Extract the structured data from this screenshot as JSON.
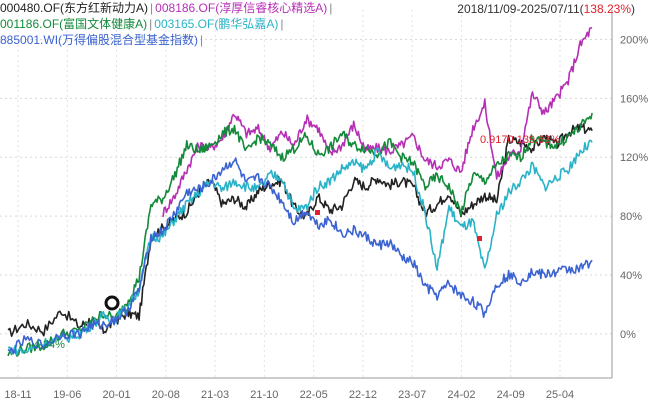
{
  "legend": {
    "rows": [
      [
        {
          "code": "000480.OF(东方红新动力A)",
          "color": "#222222"
        },
        {
          "code": "008186.OF(淳厚信睿核心精选A)",
          "color": "#b52fb5"
        }
      ],
      [
        {
          "code": "001186.OF(富国文体健康A)",
          "color": "#138a3a"
        },
        {
          "code": "003165.OF(鹏华弘嘉A)",
          "color": "#2ab3c8"
        }
      ],
      [
        {
          "code": "885001.WI(万得偏股混合型基金指数)",
          "color": "#3b63d1"
        }
      ]
    ],
    "separator": "|"
  },
  "range": {
    "dates": "2018/11/09-2025/07/11",
    "pct_open": "(",
    "pct": "138.23%",
    "pct_close": ")"
  },
  "annotations": {
    "high": "0.9170  139.63%",
    "low": "-4.34%"
  },
  "chart_data": {
    "type": "line",
    "x_ticks": [
      "18-11",
      "19-06",
      "20-01",
      "20-08",
      "21-03",
      "21-10",
      "22-05",
      "22-12",
      "23-07",
      "24-02",
      "24-09",
      "25-04"
    ],
    "y_ticks": [
      "0%",
      "40%",
      "80%",
      "120%",
      "160%",
      "200%"
    ],
    "ylim": [
      -30,
      220
    ],
    "x_range": [
      "2018-11",
      "2025-07"
    ],
    "grid": true,
    "series": [
      {
        "name": "000480.OF(东方红新动力A)",
        "color": "#222222",
        "values": [
          [
            0,
            0
          ],
          [
            3,
            7
          ],
          [
            6,
            2
          ],
          [
            9,
            16
          ],
          [
            12,
            5
          ],
          [
            14,
            10
          ],
          [
            16,
            2
          ],
          [
            18,
            9
          ],
          [
            20,
            14
          ],
          [
            22,
            12
          ],
          [
            24,
            66
          ],
          [
            26,
            72
          ],
          [
            28,
            78
          ],
          [
            30,
            83
          ],
          [
            32,
            96
          ],
          [
            34,
            104
          ],
          [
            36,
            88
          ],
          [
            38,
            92
          ],
          [
            40,
            86
          ],
          [
            42,
            97
          ],
          [
            44,
            102
          ],
          [
            46,
            104
          ],
          [
            48,
            86
          ],
          [
            50,
            79
          ],
          [
            52,
            93
          ],
          [
            54,
            84
          ],
          [
            56,
            87
          ],
          [
            58,
            104
          ],
          [
            60,
            100
          ],
          [
            62,
            106
          ],
          [
            64,
            101
          ],
          [
            66,
            104
          ],
          [
            68,
            100
          ],
          [
            70,
            82
          ],
          [
            72,
            88
          ],
          [
            74,
            96
          ],
          [
            76,
            81
          ],
          [
            78,
            88
          ],
          [
            80,
            94
          ],
          [
            82,
            90
          ],
          [
            84,
            132
          ],
          [
            86,
            130
          ],
          [
            88,
            126
          ],
          [
            90,
            134
          ],
          [
            92,
            128
          ],
          [
            94,
            137
          ],
          [
            96,
            140
          ],
          [
            98,
            138
          ]
        ]
      },
      {
        "name": "008186.OF(淳厚信睿核心精选A)",
        "color": "#b52fb5",
        "values": [
          [
            26,
            82
          ],
          [
            28,
            94
          ],
          [
            30,
            112
          ],
          [
            32,
            128
          ],
          [
            34,
            126
          ],
          [
            36,
            133
          ],
          [
            38,
            150
          ],
          [
            40,
            136
          ],
          [
            42,
            139
          ],
          [
            44,
            126
          ],
          [
            46,
            137
          ],
          [
            48,
            128
          ],
          [
            50,
            146
          ],
          [
            52,
            140
          ],
          [
            54,
            122
          ],
          [
            56,
            128
          ],
          [
            58,
            142
          ],
          [
            60,
            125
          ],
          [
            62,
            126
          ],
          [
            64,
            124
          ],
          [
            66,
            128
          ],
          [
            68,
            134
          ],
          [
            70,
            118
          ],
          [
            72,
            114
          ],
          [
            74,
            118
          ],
          [
            76,
            110
          ],
          [
            78,
            140
          ],
          [
            80,
            156
          ],
          [
            82,
            106
          ],
          [
            84,
            120
          ],
          [
            86,
            126
          ],
          [
            88,
            163
          ],
          [
            90,
            150
          ],
          [
            92,
            160
          ],
          [
            94,
            172
          ],
          [
            96,
            196
          ],
          [
            98,
            208
          ]
        ]
      },
      {
        "name": "001186.OF(富国文体健康A)",
        "color": "#138a3a",
        "values": [
          [
            0,
            -14
          ],
          [
            3,
            -10
          ],
          [
            6,
            -8
          ],
          [
            9,
            0
          ],
          [
            12,
            2
          ],
          [
            14,
            8
          ],
          [
            16,
            14
          ],
          [
            18,
            10
          ],
          [
            20,
            22
          ],
          [
            22,
            38
          ],
          [
            24,
            88
          ],
          [
            26,
            92
          ],
          [
            28,
            108
          ],
          [
            30,
            128
          ],
          [
            32,
            124
          ],
          [
            34,
            128
          ],
          [
            36,
            136
          ],
          [
            38,
            140
          ],
          [
            40,
            123
          ],
          [
            42,
            134
          ],
          [
            44,
            128
          ],
          [
            46,
            120
          ],
          [
            48,
            126
          ],
          [
            50,
            134
          ],
          [
            52,
            122
          ],
          [
            54,
            126
          ],
          [
            56,
            136
          ],
          [
            58,
            128
          ],
          [
            60,
            126
          ],
          [
            62,
            123
          ],
          [
            64,
            130
          ],
          [
            66,
            120
          ],
          [
            68,
            116
          ],
          [
            70,
            100
          ],
          [
            72,
            107
          ],
          [
            74,
            100
          ],
          [
            76,
            82
          ],
          [
            78,
            108
          ],
          [
            80,
            104
          ],
          [
            82,
            114
          ],
          [
            84,
            121
          ],
          [
            86,
            120
          ],
          [
            88,
            133
          ],
          [
            90,
            130
          ],
          [
            92,
            128
          ],
          [
            94,
            134
          ],
          [
            96,
            140
          ],
          [
            98,
            150
          ]
        ]
      },
      {
        "name": "003165.OF(鹏华弘嘉A)",
        "color": "#2ab3c8",
        "values": [
          [
            0,
            -10
          ],
          [
            3,
            -12
          ],
          [
            6,
            -6
          ],
          [
            9,
            -4
          ],
          [
            12,
            0
          ],
          [
            14,
            6
          ],
          [
            16,
            12
          ],
          [
            18,
            10
          ],
          [
            20,
            18
          ],
          [
            22,
            30
          ],
          [
            24,
            66
          ],
          [
            26,
            66
          ],
          [
            28,
            78
          ],
          [
            30,
            88
          ],
          [
            32,
            96
          ],
          [
            34,
            104
          ],
          [
            36,
            98
          ],
          [
            38,
            104
          ],
          [
            40,
            100
          ],
          [
            42,
            98
          ],
          [
            44,
            108
          ],
          [
            46,
            106
          ],
          [
            48,
            84
          ],
          [
            50,
            86
          ],
          [
            52,
            100
          ],
          [
            54,
            104
          ],
          [
            56,
            112
          ],
          [
            58,
            116
          ],
          [
            60,
            112
          ],
          [
            62,
            124
          ],
          [
            64,
            112
          ],
          [
            66,
            116
          ],
          [
            68,
            110
          ],
          [
            70,
            82
          ],
          [
            72,
            44
          ],
          [
            74,
            86
          ],
          [
            76,
            72
          ],
          [
            78,
            76
          ],
          [
            80,
            42
          ],
          [
            82,
            80
          ],
          [
            84,
            96
          ],
          [
            86,
            104
          ],
          [
            88,
            114
          ],
          [
            90,
            100
          ],
          [
            92,
            106
          ],
          [
            94,
            112
          ],
          [
            96,
            124
          ],
          [
            98,
            130
          ]
        ]
      },
      {
        "name": "885001.WI(万得偏股混合型基金指数)",
        "color": "#3b63d1",
        "values": [
          [
            0,
            -13
          ],
          [
            3,
            -4
          ],
          [
            6,
            -8
          ],
          [
            9,
            0
          ],
          [
            12,
            0
          ],
          [
            14,
            6
          ],
          [
            16,
            6
          ],
          [
            18,
            10
          ],
          [
            20,
            16
          ],
          [
            22,
            30
          ],
          [
            24,
            66
          ],
          [
            26,
            70
          ],
          [
            28,
            82
          ],
          [
            30,
            96
          ],
          [
            32,
            98
          ],
          [
            34,
            103
          ],
          [
            36,
            112
          ],
          [
            38,
            118
          ],
          [
            40,
            102
          ],
          [
            42,
            106
          ],
          [
            44,
            100
          ],
          [
            46,
            90
          ],
          [
            48,
            76
          ],
          [
            50,
            84
          ],
          [
            52,
            74
          ],
          [
            54,
            78
          ],
          [
            56,
            68
          ],
          [
            58,
            70
          ],
          [
            60,
            66
          ],
          [
            62,
            60
          ],
          [
            64,
            62
          ],
          [
            66,
            52
          ],
          [
            68,
            48
          ],
          [
            70,
            32
          ],
          [
            72,
            26
          ],
          [
            74,
            34
          ],
          [
            76,
            26
          ],
          [
            78,
            22
          ],
          [
            80,
            14
          ],
          [
            82,
            34
          ],
          [
            84,
            40
          ],
          [
            86,
            36
          ],
          [
            88,
            42
          ],
          [
            90,
            40
          ],
          [
            92,
            42
          ],
          [
            94,
            44
          ],
          [
            96,
            44
          ],
          [
            98,
            50
          ]
        ]
      }
    ]
  }
}
